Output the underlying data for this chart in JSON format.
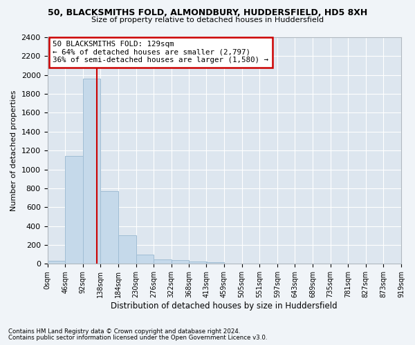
{
  "title_line1": "50, BLACKSMITHS FOLD, ALMONDBURY, HUDDERSFIELD, HD5 8XH",
  "title_line2": "Size of property relative to detached houses in Huddersfield",
  "xlabel": "Distribution of detached houses by size in Huddersfield",
  "ylabel": "Number of detached properties",
  "bar_edges": [
    0,
    46,
    92,
    138,
    184,
    230,
    276,
    322,
    368,
    413,
    459,
    505,
    551,
    597,
    643,
    689,
    735,
    781,
    827,
    873,
    919
  ],
  "bar_heights": [
    35,
    1140,
    1960,
    770,
    300,
    100,
    48,
    42,
    25,
    18,
    0,
    0,
    0,
    0,
    0,
    0,
    0,
    0,
    0,
    0
  ],
  "bar_color": "#c5d9ea",
  "bar_edgecolor": "#a0bdd4",
  "vline_x": 129,
  "vline_color": "#cc0000",
  "annotation_box_text": "50 BLACKSMITHS FOLD: 129sqm\n← 64% of detached houses are smaller (2,797)\n36% of semi-detached houses are larger (1,580) →",
  "ylim": [
    0,
    2400
  ],
  "yticks": [
    0,
    200,
    400,
    600,
    800,
    1000,
    1200,
    1400,
    1600,
    1800,
    2000,
    2200,
    2400
  ],
  "tick_labels": [
    "0sqm",
    "46sqm",
    "92sqm",
    "138sqm",
    "184sqm",
    "230sqm",
    "276sqm",
    "322sqm",
    "368sqm",
    "413sqm",
    "459sqm",
    "505sqm",
    "551sqm",
    "597sqm",
    "643sqm",
    "689sqm",
    "735sqm",
    "781sqm",
    "827sqm",
    "873sqm",
    "919sqm"
  ],
  "footer_line1": "Contains HM Land Registry data © Crown copyright and database right 2024.",
  "footer_line2": "Contains public sector information licensed under the Open Government Licence v3.0.",
  "bg_color": "#f0f4f8",
  "plot_bg_color": "#dde6ef",
  "grid_color": "#ffffff"
}
